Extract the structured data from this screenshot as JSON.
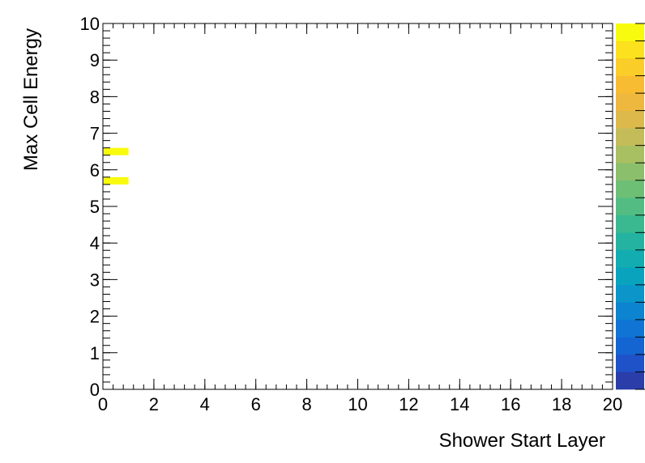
{
  "chart_data": {
    "type": "heatmap",
    "title": "",
    "xlabel": "Shower Start Layer",
    "ylabel": "Max Cell Energy",
    "xlim": [
      0,
      20
    ],
    "ylim": [
      0,
      10
    ],
    "x_ticks": [
      "0",
      "2",
      "4",
      "6",
      "8",
      "10",
      "12",
      "14",
      "16",
      "18",
      "20"
    ],
    "y_ticks": [
      "0",
      "1",
      "2",
      "3",
      "4",
      "5",
      "6",
      "7",
      "8",
      "9",
      "10"
    ],
    "x_bin_width": 1,
    "y_bin_width": 0.2,
    "cells": [
      {
        "x": 0,
        "y": 6.4,
        "level": 1.0
      },
      {
        "x": 0,
        "y": 5.6,
        "level": 1.0
      }
    ],
    "palette": [
      "#2a3da8",
      "#1f51c8",
      "#1464d2",
      "#0f74d4",
      "#0d84cf",
      "#0b95c8",
      "#0aa3be",
      "#12acb1",
      "#25b3a1",
      "#3ab890",
      "#52bc83",
      "#6ebf76",
      "#8cbf6b",
      "#a8bf62",
      "#c4bc58",
      "#dcb94a",
      "#eeb73e",
      "#f8bc33",
      "#fbcd28",
      "#fbe11e",
      "#f9fb0e"
    ],
    "grid": false,
    "legend": "color-bar-right"
  }
}
